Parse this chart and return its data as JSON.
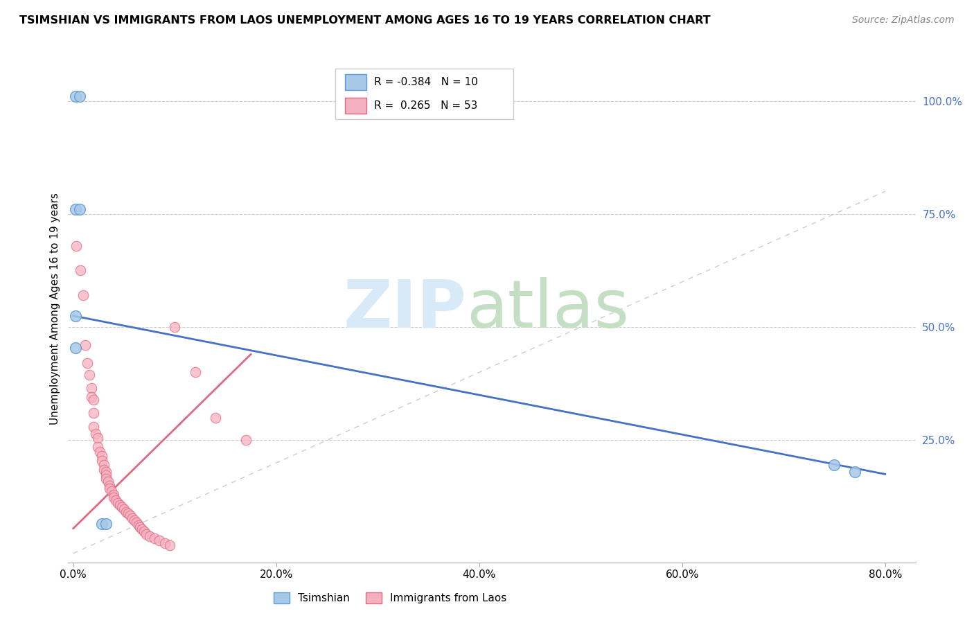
{
  "title": "TSIMSHIAN VS IMMIGRANTS FROM LAOS UNEMPLOYMENT AMONG AGES 16 TO 19 YEARS CORRELATION CHART",
  "source": "Source: ZipAtlas.com",
  "ylabel": "Unemployment Among Ages 16 to 19 years",
  "xlim": [
    -0.005,
    0.83
  ],
  "ylim": [
    -0.02,
    1.1
  ],
  "xtick_labels": [
    "0.0%",
    "20.0%",
    "40.0%",
    "60.0%",
    "80.0%"
  ],
  "xtick_vals": [
    0.0,
    0.2,
    0.4,
    0.6,
    0.8
  ],
  "ytick_labels": [
    "100.0%",
    "75.0%",
    "50.0%",
    "25.0%"
  ],
  "ytick_vals": [
    1.0,
    0.75,
    0.5,
    0.25
  ],
  "tsimshian_color": "#a8c8e8",
  "laos_color": "#f5b0c0",
  "tsimshian_edge": "#5b9bd5",
  "laos_edge": "#e06880",
  "line_blue": "#4472c4",
  "line_pink": "#e06880",
  "diag_color": "#cccccc",
  "blue_line_x": [
    0.0,
    0.8
  ],
  "blue_line_y": [
    0.525,
    0.175
  ],
  "pink_line_x": [
    0.0,
    0.175
  ],
  "pink_line_y": [
    0.055,
    0.44
  ],
  "tsimshian_x": [
    0.002,
    0.006,
    0.002,
    0.006,
    0.002,
    0.002,
    0.75,
    0.77,
    0.028,
    0.032
  ],
  "tsimshian_y": [
    1.01,
    1.01,
    0.76,
    0.76,
    0.525,
    0.455,
    0.195,
    0.18,
    0.065,
    0.065
  ],
  "laos_x": [
    0.003,
    0.007,
    0.01,
    0.012,
    0.014,
    0.016,
    0.018,
    0.018,
    0.02,
    0.02,
    0.02,
    0.022,
    0.024,
    0.024,
    0.026,
    0.028,
    0.028,
    0.03,
    0.03,
    0.032,
    0.032,
    0.032,
    0.034,
    0.036,
    0.036,
    0.038,
    0.04,
    0.04,
    0.042,
    0.044,
    0.046,
    0.048,
    0.05,
    0.052,
    0.054,
    0.056,
    0.058,
    0.06,
    0.062,
    0.064,
    0.066,
    0.068,
    0.07,
    0.072,
    0.075,
    0.08,
    0.085,
    0.09,
    0.095,
    0.1,
    0.12,
    0.14,
    0.17
  ],
  "laos_y": [
    0.68,
    0.625,
    0.57,
    0.46,
    0.42,
    0.395,
    0.365,
    0.345,
    0.34,
    0.31,
    0.28,
    0.265,
    0.255,
    0.235,
    0.225,
    0.215,
    0.205,
    0.195,
    0.185,
    0.18,
    0.172,
    0.165,
    0.158,
    0.15,
    0.143,
    0.137,
    0.13,
    0.123,
    0.117,
    0.112,
    0.107,
    0.102,
    0.097,
    0.092,
    0.088,
    0.083,
    0.078,
    0.073,
    0.068,
    0.063,
    0.058,
    0.053,
    0.048,
    0.043,
    0.038,
    0.033,
    0.028,
    0.023,
    0.018,
    0.5,
    0.4,
    0.3,
    0.25
  ]
}
